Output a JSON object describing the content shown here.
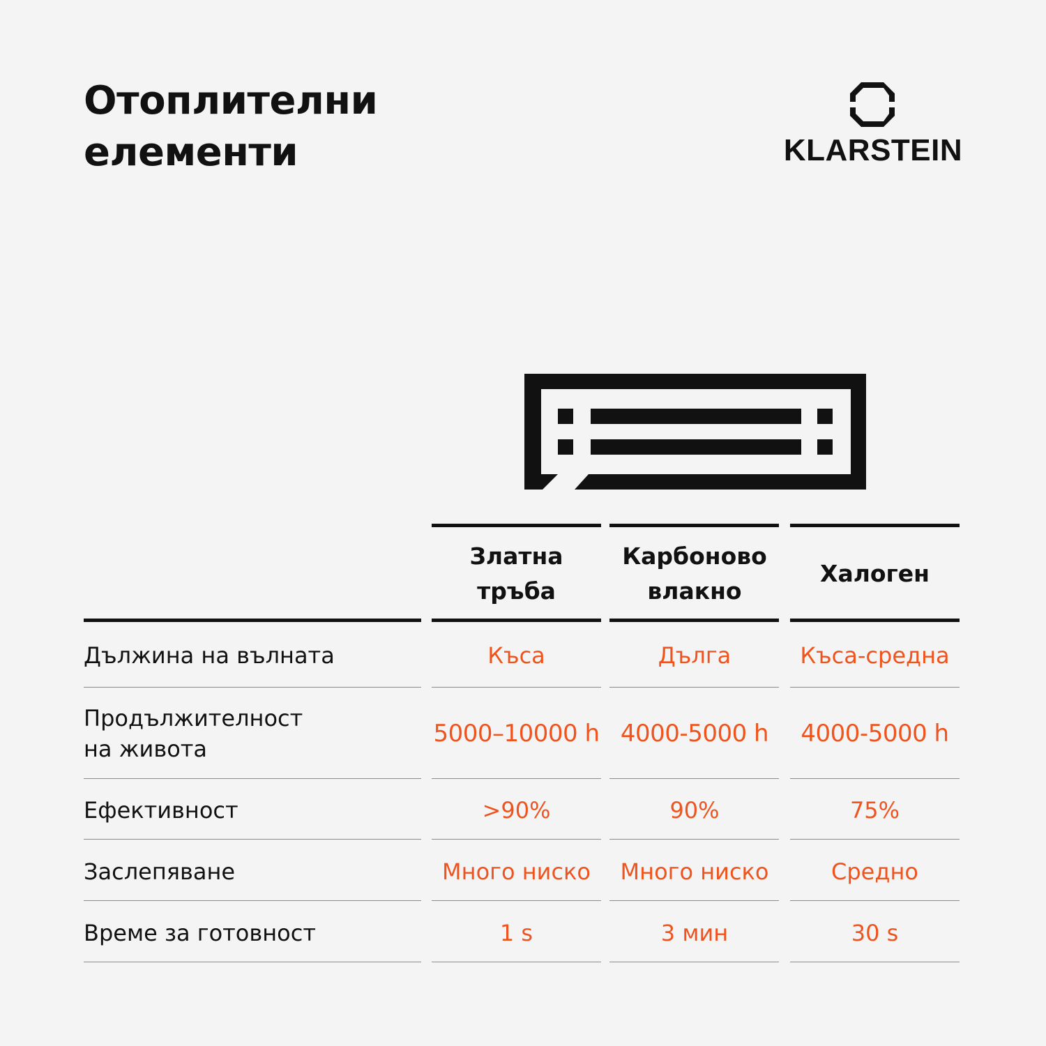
{
  "title_lines": [
    "Отоплителни",
    "елементи"
  ],
  "brand": {
    "name": "KLARSTEIN",
    "icon": "klarstein-logo-icon"
  },
  "illustration": {
    "icon": "heater-element-icon"
  },
  "columns": [
    {
      "line1": "Златна тръба",
      "line2": ""
    },
    {
      "line1": "Карбоново",
      "line2": "влакно"
    },
    {
      "line1": "Халоген",
      "line2": ""
    }
  ],
  "rows": [
    {
      "label": [
        "Дължина на вълната"
      ],
      "values": [
        "Къса",
        "Дълга",
        "Къса-средна"
      ]
    },
    {
      "label": [
        "Продължителност",
        "на живота"
      ],
      "values": [
        "5000–10000 h",
        "4000-5000 h",
        "4000-5000 h"
      ]
    },
    {
      "label": [
        "Ефективност"
      ],
      "values": [
        ">90%",
        "90%",
        "75%"
      ]
    },
    {
      "label": [
        "Заслепяване"
      ],
      "values": [
        "Много ниско",
        "Много ниско",
        "Средно"
      ]
    },
    {
      "label": [
        "Време за готовност"
      ],
      "values": [
        "1 s",
        "3 мин",
        "30 s"
      ]
    }
  ],
  "colors": {
    "background": "#f4f4f4",
    "text": "#111111",
    "accent": "#f0541e",
    "thin_rule": "#8a8a8a"
  }
}
